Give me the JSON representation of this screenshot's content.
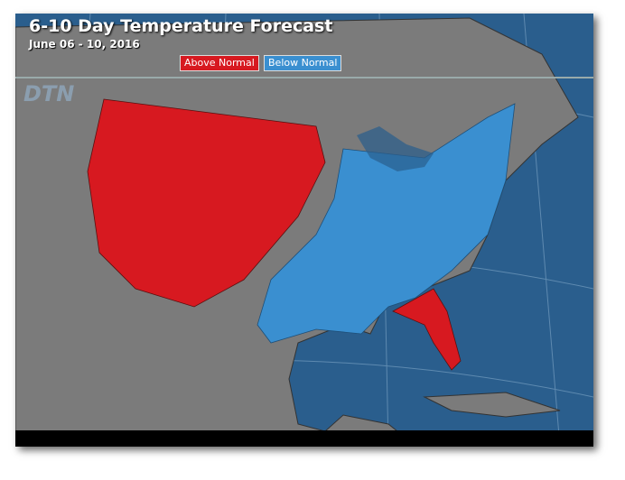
{
  "header": {
    "title": "6-10 Day Temperature Forecast",
    "subtitle": "June 06 - 10, 2016"
  },
  "legend": [
    {
      "label": "Above Normal"
    },
    {
      "label": "Below Normal"
    }
  ],
  "logo": "DTN"
}
